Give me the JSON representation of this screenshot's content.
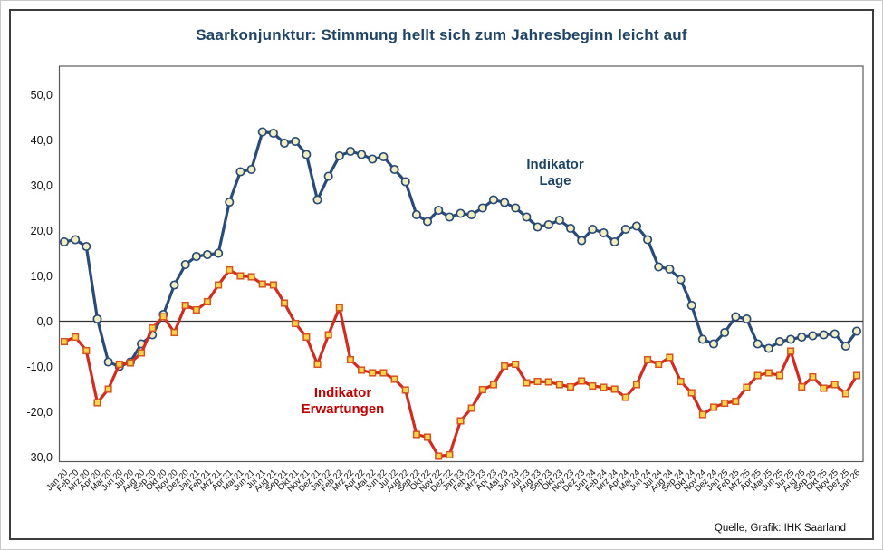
{
  "title": "Saarkonjunktur: Stimmung hellt sich zum Jahresbeginn leicht auf",
  "source": "Quelle, Grafik: IHK Saarland",
  "legend": {
    "lage_line1": "Indikator",
    "lage_line2": "Lage",
    "erwartungen_line1": "Indikator",
    "erwartungen_line2": "Erwartungen"
  },
  "colors": {
    "title": "#1f4464",
    "lage_line": "#2a4a78",
    "lage_marker_fill": "#f0eec2",
    "erwartungen_line": "#d22b20",
    "erwartungen_marker_fill": "#ffd34d",
    "erwartungen_marker_stroke": "#d3541e",
    "axis_text": "#111111",
    "zero_line": "#333333",
    "plot_border": "#595959"
  },
  "chart_data": {
    "type": "line",
    "title": "Saarkonjunktur: Stimmung hellt sich zum Jahresbeginn leicht auf",
    "xlabel": "",
    "ylabel": "",
    "grid": false,
    "zero_line": true,
    "legend_position": "inside",
    "ylim": [
      -32,
      57
    ],
    "y_ticks": {
      "labels": [
        "50,0",
        "40,0",
        "30,0",
        "20,0",
        "10,0",
        "0,0",
        "-10,0",
        "-20,0",
        "-30,0"
      ],
      "values": [
        50,
        40,
        30,
        20,
        10,
        0,
        -10,
        -20,
        -30
      ]
    },
    "categories": [
      "Jan 20",
      "Feb 20",
      "Mrz 20",
      "Apr 20",
      "Mai 20",
      "Jun 20",
      "Jul 20",
      "Aug 20",
      "Sep 20",
      "Okt 20",
      "Nov 20",
      "Dez 20",
      "Jan 21",
      "Feb 21",
      "Mrz 21",
      "Apr 21",
      "Mai 21",
      "Jun 21",
      "Jul 21",
      "Aug 21",
      "Sep 21",
      "Okt 21",
      "Nov 21",
      "Dez 21",
      "Jan 22",
      "Feb 22",
      "Mrz 22",
      "Apr 22",
      "Mai 22",
      "Jun 22",
      "Jul 22",
      "Aug 22",
      "Sep 22",
      "Okt 22",
      "Nov 22",
      "Dez 22",
      "Jan 23",
      "Feb 23",
      "Mrz 23",
      "Apr 23",
      "Mai 23",
      "Jun 23",
      "Jul 23",
      "Aug 23",
      "Sep 23",
      "Okt 23",
      "Nov 23",
      "Dez 23",
      "Jan 24",
      "Feb 24",
      "Mrz 24",
      "Apr 24",
      "Mai 24",
      "Jun 24",
      "Jul 24",
      "Aug 24",
      "Sep 24",
      "Okt 24",
      "Nov 24",
      "Dez 24",
      "Jan 25",
      "Feb 25",
      "Mrz 25",
      "Apr 25",
      "Mai 25",
      "Jun 25",
      "Jul 25",
      "Aug 25",
      "Sep 25",
      "Okt 25",
      "Nov 25",
      "Dez 25",
      "Jan 26"
    ],
    "series": [
      {
        "name": "Indikator Lage",
        "marker": "circle",
        "values": [
          17.5,
          18.0,
          16.5,
          0.5,
          -9.0,
          -10.0,
          -9.0,
          -5.0,
          -3.0,
          1.5,
          8.0,
          12.5,
          14.3,
          14.7,
          15.0,
          26.3,
          33.0,
          33.5,
          41.8,
          41.5,
          39.3,
          39.7,
          36.8,
          26.8,
          32.0,
          36.5,
          37.5,
          36.8,
          35.8,
          36.3,
          33.5,
          30.8,
          23.5,
          22.0,
          24.5,
          23.0,
          23.8,
          23.5,
          25.0,
          26.8,
          26.2,
          25.0,
          23.0,
          20.8,
          21.3,
          22.3,
          20.5,
          17.8,
          20.3,
          19.5,
          17.5,
          20.3,
          21.0,
          18.0,
          12.0,
          11.5,
          9.2,
          3.5,
          -4.0,
          -5.0,
          -2.5,
          1.0,
          0.5,
          -5.0,
          -6.0,
          -4.5,
          -4.0,
          -3.5,
          -3.2,
          -3.0,
          -2.8,
          -5.5,
          -2.2
        ]
      },
      {
        "name": "Indikator Erwartungen",
        "marker": "square",
        "values": [
          -4.5,
          -3.5,
          -6.5,
          -18.0,
          -15.0,
          -9.5,
          -9.2,
          -7.0,
          -1.5,
          1.0,
          -2.5,
          3.5,
          2.5,
          4.3,
          8.0,
          11.3,
          10.0,
          9.8,
          8.2,
          8.0,
          4.0,
          -0.5,
          -3.5,
          -9.5,
          -3.0,
          3.0,
          -8.5,
          -10.8,
          -11.4,
          -11.4,
          -12.8,
          -15.2,
          -25.0,
          -25.6,
          -29.8,
          -29.5,
          -22.0,
          -19.2,
          -15.1,
          -14.0,
          -9.9,
          -9.5,
          -13.6,
          -13.3,
          -13.4,
          -14.0,
          -14.5,
          -13.2,
          -14.3,
          -14.6,
          -15.0,
          -16.8,
          -14.0,
          -8.5,
          -9.5,
          -8.0,
          -13.3,
          -15.8,
          -20.6,
          -19.0,
          -18.1,
          -17.7,
          -14.6,
          -12.0,
          -11.4,
          -12.0,
          -6.6,
          -14.5,
          -12.3,
          -14.8,
          -14.0,
          -16.0,
          -12.0
        ]
      }
    ]
  }
}
